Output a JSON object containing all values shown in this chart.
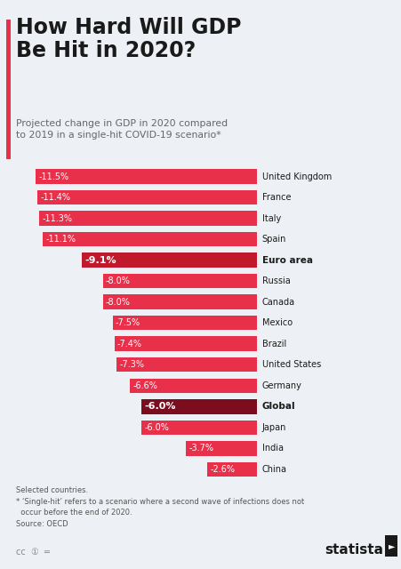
{
  "title": "How Hard Will GDP\nBe Hit in 2020?",
  "subtitle": "Projected change in GDP in 2020 compared\nto 2019 in a single-hit COVID-19 scenario*",
  "countries": [
    "United Kingdom",
    "France",
    "Italy",
    "Spain",
    "Euro area",
    "Russia",
    "Canada",
    "Mexico",
    "Brazil",
    "United States",
    "Germany",
    "Global",
    "Japan",
    "India",
    "China"
  ],
  "values": [
    -11.5,
    -11.4,
    -11.3,
    -11.1,
    -9.1,
    -8.0,
    -8.0,
    -7.5,
    -7.4,
    -7.3,
    -6.6,
    -6.0,
    -6.0,
    -3.7,
    -2.6
  ],
  "labels": [
    "-11.5%",
    "-11.4%",
    "-11.3%",
    "-11.1%",
    "-9.1%",
    "-8.0%",
    "-8.0%",
    "-7.5%",
    "-7.4%",
    "-7.3%",
    "-6.6%",
    "-6.0%",
    "-6.0%",
    "-3.7%",
    "-2.6%"
  ],
  "bar_colors": [
    "#e8304a",
    "#e8304a",
    "#e8304a",
    "#e8304a",
    "#c0192c",
    "#e8304a",
    "#e8304a",
    "#e8304a",
    "#e8304a",
    "#e8304a",
    "#e8304a",
    "#7b0d1e",
    "#e8304a",
    "#e8304a",
    "#e8304a"
  ],
  "highlight": [
    false,
    false,
    false,
    false,
    true,
    false,
    false,
    false,
    false,
    false,
    false,
    true,
    false,
    false,
    false
  ],
  "bg_color": "#edf0f4",
  "title_color": "#1a1a1a",
  "subtitle_color": "#666666",
  "footnote_line1": "Selected countries.",
  "footnote_line2": "* ‘Single-hit’ refers to a scenario where a second wave of infections does not",
  "footnote_line3": "  occur before the end of 2020.",
  "footnote_line4": "Source: OECD"
}
